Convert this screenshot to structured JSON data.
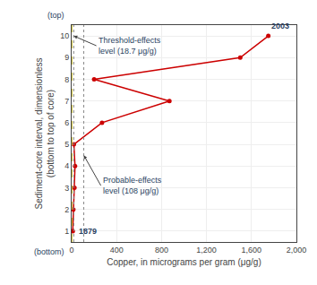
{
  "chart_data": {
    "type": "line",
    "marker": "circle",
    "color": "#cc0000",
    "x": [
      10,
      15,
      25,
      30,
      20,
      270,
      870,
      200,
      1500,
      1750
    ],
    "values": [
      1,
      2,
      3,
      4,
      5,
      6,
      7,
      8,
      9,
      10
    ],
    "xlabel": "Copper, in micrograms per gram (μg/g)",
    "ylabel": "Sediment-core interval, dimensionless\n(bottom to top of core)",
    "xlim": [
      0,
      2000
    ],
    "ylim": [
      0.5,
      10.5
    ],
    "xticks": [
      0,
      400,
      800,
      {
        "value": 1200,
        "label": "1,200"
      },
      {
        "value": 1600,
        "label": "1,600"
      },
      {
        "value": 2000,
        "label": "2,000"
      }
    ],
    "yticks": [
      1,
      2,
      3,
      4,
      5,
      6,
      7,
      8,
      9,
      10
    ],
    "grid": true,
    "reference_lines": [
      {
        "x": 0,
        "color": "#d4c84a",
        "line_style": "dashed"
      },
      {
        "x": 18.7,
        "color": "#888888",
        "line_style": "dotted"
      },
      {
        "x": 108,
        "color": "#888888",
        "line_style": "dotted"
      }
    ],
    "annotations": [
      {
        "text": "1879",
        "x": 50,
        "y": 1.0
      },
      {
        "text": "2003",
        "x": 1760,
        "y": 10.15
      },
      {
        "text": "Threshold-effects\nlevel (18.7 μg/g)",
        "x": 18.7,
        "y": 10.0,
        "text_x": 220,
        "text_y": 9.55
      },
      {
        "text": "Probable-effects\nlevel (108 μg/g)",
        "x": 108,
        "y": 4.5,
        "text_x": 260,
        "text_y": 3.1
      }
    ],
    "top_label": "(top)",
    "bottom_label": "(bottom)"
  }
}
